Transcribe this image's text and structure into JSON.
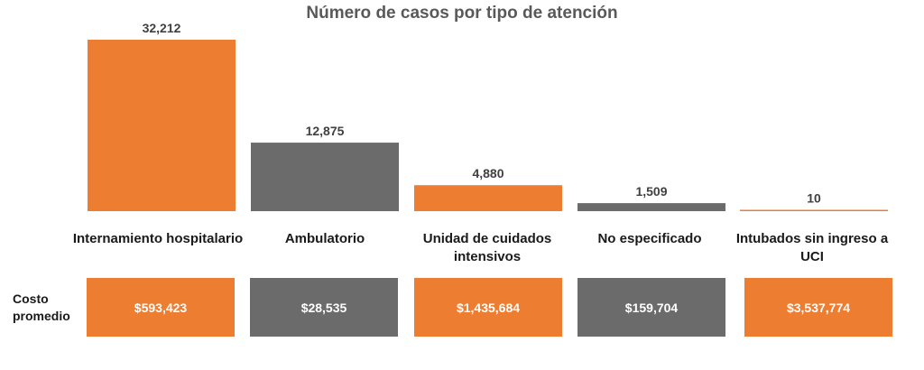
{
  "chart_data": {
    "type": "bar",
    "title": "Número de casos por tipo de atención",
    "categories": [
      "Internamiento hospitalario",
      "Ambulatorio",
      "Unidad de cuidados intensivos",
      "No especificado",
      "Intubados sin ingreso a UCI"
    ],
    "values": [
      32212,
      12875,
      4880,
      1509,
      10
    ],
    "value_labels": [
      "32,212",
      "12,875",
      "4,880",
      "1,509",
      "10"
    ],
    "colors": [
      "#ED7D31",
      "#6B6B6B",
      "#ED7D31",
      "#6B6B6B",
      "#ED7D31"
    ],
    "ylim": [
      0,
      32212
    ],
    "grid": false
  },
  "cost": {
    "label": "Costo promedio",
    "values": [
      "$593,423",
      "$28,535",
      "$1,435,684",
      "$159,704",
      "$3,537,774"
    ]
  }
}
